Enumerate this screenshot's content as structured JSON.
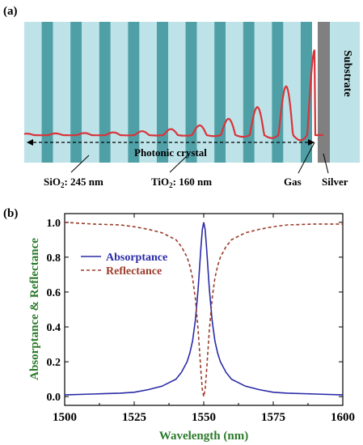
{
  "panel_a": {
    "label": "(a)",
    "photonic_crystal_label": "Photonic crystal",
    "sio2_label": {
      "prefix": "SiO",
      "sub": "2",
      "suffix": ": 245 nm"
    },
    "tio2_label": {
      "prefix": "TiO",
      "sub": "2",
      "suffix": ": 160 nm"
    },
    "gas_label": "Gas",
    "silver_label": "Silver",
    "substrate_label": "Substrate",
    "layer_pairs": 10,
    "colors": {
      "sio2": "#bde3e8",
      "tio2": "#4fa0a6",
      "silver": "#808080",
      "substrate": "#bde3e8",
      "gas": "#ffffff",
      "field_line": "#d8343a",
      "field_edge": "#6b6b20"
    }
  },
  "panel_b": {
    "label": "(b)",
    "chart_data": {
      "type": "line",
      "title": "",
      "xlabel": "Wavelength (nm)",
      "ylabel": "Absorptance & Reflectance",
      "xlim": [
        1500,
        1600
      ],
      "ylim": [
        -0.05,
        1.05
      ],
      "xticks": [
        1500,
        1525,
        1550,
        1575,
        1600
      ],
      "yticks": [
        0.0,
        0.2,
        0.4,
        0.6,
        0.8,
        1.0
      ],
      "xtick_labels": [
        "1500",
        "1525",
        "1550",
        "1575",
        "1600"
      ],
      "ytick_labels": [
        "0.0",
        "0.2",
        "0.4",
        "0.6",
        "0.8",
        "1.0"
      ],
      "legend_position": "top-left",
      "grid": false,
      "x": [
        1500,
        1510,
        1520,
        1525,
        1530,
        1535,
        1540,
        1542,
        1544,
        1545,
        1546,
        1547,
        1548,
        1549,
        1549.5,
        1550,
        1550.5,
        1551,
        1552,
        1553,
        1554,
        1555,
        1556,
        1558,
        1560,
        1565,
        1570,
        1575,
        1580,
        1590,
        1600
      ],
      "series": [
        {
          "name": "Absorptance",
          "color": "#2a2aa8",
          "dash": "solid",
          "values": [
            0.01,
            0.015,
            0.02,
            0.025,
            0.04,
            0.06,
            0.1,
            0.14,
            0.2,
            0.25,
            0.32,
            0.44,
            0.62,
            0.86,
            0.96,
            1.0,
            0.96,
            0.86,
            0.62,
            0.44,
            0.32,
            0.25,
            0.2,
            0.14,
            0.1,
            0.06,
            0.04,
            0.025,
            0.02,
            0.015,
            0.01
          ]
        },
        {
          "name": "Reflectance",
          "color": "#9c3b2a",
          "dash": "4,3",
          "values": [
            1.0,
            0.99,
            0.985,
            0.975,
            0.96,
            0.94,
            0.9,
            0.86,
            0.8,
            0.75,
            0.68,
            0.56,
            0.38,
            0.14,
            0.04,
            0.0,
            0.04,
            0.14,
            0.38,
            0.56,
            0.68,
            0.75,
            0.8,
            0.86,
            0.9,
            0.94,
            0.96,
            0.975,
            0.985,
            0.99,
            0.99
          ]
        }
      ]
    }
  }
}
